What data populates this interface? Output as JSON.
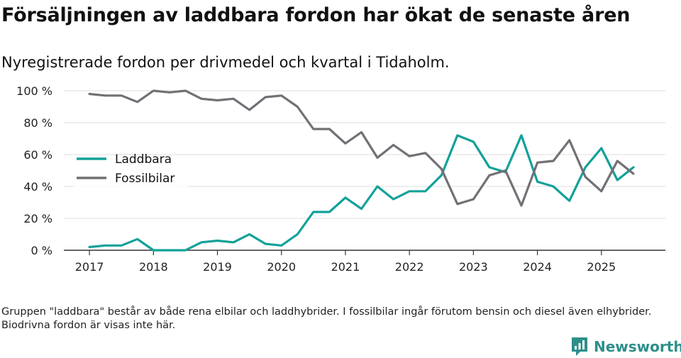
{
  "colors": {
    "laddbara": "#12a199",
    "fossil": "#727075",
    "grid": "#dddddd",
    "axis": "#333333",
    "brand": "#2d8f8a"
  },
  "brand": {
    "name": "Newsworthy",
    "icon": "bar-chart-icon"
  },
  "footnote": "Gruppen \"laddbara\" består av både rena elbilar och laddhybrider. I fossilbilar ingår förutom bensin och diesel även elhybrider. Biodrivna fordon är visas inte här.",
  "chart_data": {
    "type": "line",
    "title": "Försäljningen av laddbara fordon har ökat de senaste åren",
    "subtitle": "Nyregistrerade fordon per drivmedel och kvartal i Tidaholm.",
    "xlabel": "",
    "ylabel": "",
    "ylim": [
      0,
      100
    ],
    "yticks": [
      0,
      20,
      40,
      60,
      80,
      100
    ],
    "ytick_labels": [
      "0 %",
      "20 %",
      "40 %",
      "60 %",
      "80 %",
      "100 %"
    ],
    "xticks": [
      2017,
      2018,
      2019,
      2020,
      2021,
      2022,
      2023,
      2024,
      2025
    ],
    "xtick_labels": [
      "2017",
      "2018",
      "2019",
      "2020",
      "2021",
      "2022",
      "2023",
      "2024",
      "2025"
    ],
    "xlim": [
      2016.6,
      2026.0
    ],
    "grid": true,
    "legend": "left",
    "x": [
      2017.0,
      2017.25,
      2017.5,
      2017.75,
      2018.0,
      2018.25,
      2018.5,
      2018.75,
      2019.0,
      2019.25,
      2019.5,
      2019.75,
      2020.0,
      2020.25,
      2020.5,
      2020.75,
      2021.0,
      2021.25,
      2021.5,
      2021.75,
      2022.0,
      2022.25,
      2022.5,
      2022.75,
      2023.0,
      2023.25,
      2023.5,
      2023.75,
      2024.0,
      2024.25,
      2024.5,
      2024.75,
      2025.0,
      2025.25,
      2025.5
    ],
    "series": [
      {
        "name": "Laddbara",
        "color": "#12a199",
        "values": [
          2,
          3,
          3,
          7,
          0,
          0,
          0,
          5,
          6,
          5,
          10,
          4,
          3,
          10,
          24,
          24,
          33,
          26,
          40,
          32,
          37,
          37,
          47,
          72,
          68,
          52,
          49,
          72,
          43,
          40,
          31,
          52,
          64,
          44,
          52
        ]
      },
      {
        "name": "Fossilbilar",
        "color": "#727075",
        "values": [
          98,
          97,
          97,
          93,
          100,
          99,
          100,
          95,
          94,
          95,
          88,
          96,
          97,
          90,
          76,
          76,
          67,
          74,
          58,
          66,
          59,
          61,
          51,
          29,
          32,
          47,
          50,
          28,
          55,
          56,
          69,
          46,
          37,
          56,
          48
        ]
      }
    ]
  }
}
